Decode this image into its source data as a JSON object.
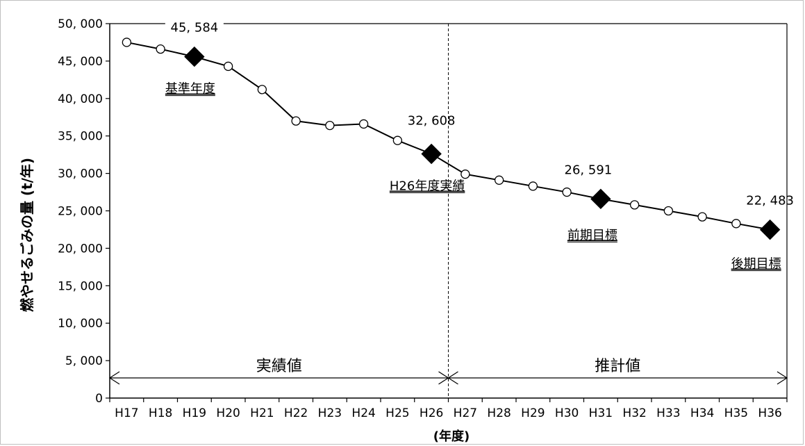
{
  "chart_data": {
    "type": "line",
    "title": "",
    "xlabel": "(年度)",
    "ylabel": "燃やせるごみの量 (t/年)",
    "ylim": [
      0,
      50000
    ],
    "yticks": [
      0,
      5000,
      10000,
      15000,
      20000,
      25000,
      30000,
      35000,
      40000,
      45000,
      50000
    ],
    "ytick_labels": [
      "0",
      "5, 000",
      "10, 000",
      "15, 000",
      "20, 000",
      "25, 000",
      "30, 000",
      "35, 000",
      "40, 000",
      "45, 000",
      "50, 000"
    ],
    "categories": [
      "H17",
      "H18",
      "H19",
      "H20",
      "H21",
      "H22",
      "H23",
      "H24",
      "H25",
      "H26",
      "H27",
      "H28",
      "H29",
      "H30",
      "H31",
      "H32",
      "H33",
      "H34",
      "H35",
      "H36"
    ],
    "series": [
      {
        "values": [
          47500,
          46600,
          45584,
          44300,
          41200,
          37000,
          36400,
          36600,
          34400,
          32608,
          29900,
          29100,
          28300,
          27500,
          26591,
          25800,
          25000,
          24200,
          23300,
          22483
        ]
      }
    ],
    "key_points": [
      {
        "index": 2,
        "value_label": "45, 584",
        "label": "基準年度"
      },
      {
        "index": 9,
        "value_label": "32, 608",
        "label": "H26年度実績"
      },
      {
        "index": 14,
        "value_label": "26, 591",
        "label": "前期目標"
      },
      {
        "index": 19,
        "value_label": "22, 483",
        "label": "後期目標"
      }
    ],
    "regions": [
      {
        "label": "実績値",
        "from": "H17",
        "to": "H26"
      },
      {
        "label": "推計値",
        "from": "H27",
        "to": "H36"
      }
    ],
    "grid": false,
    "legend": "none"
  }
}
